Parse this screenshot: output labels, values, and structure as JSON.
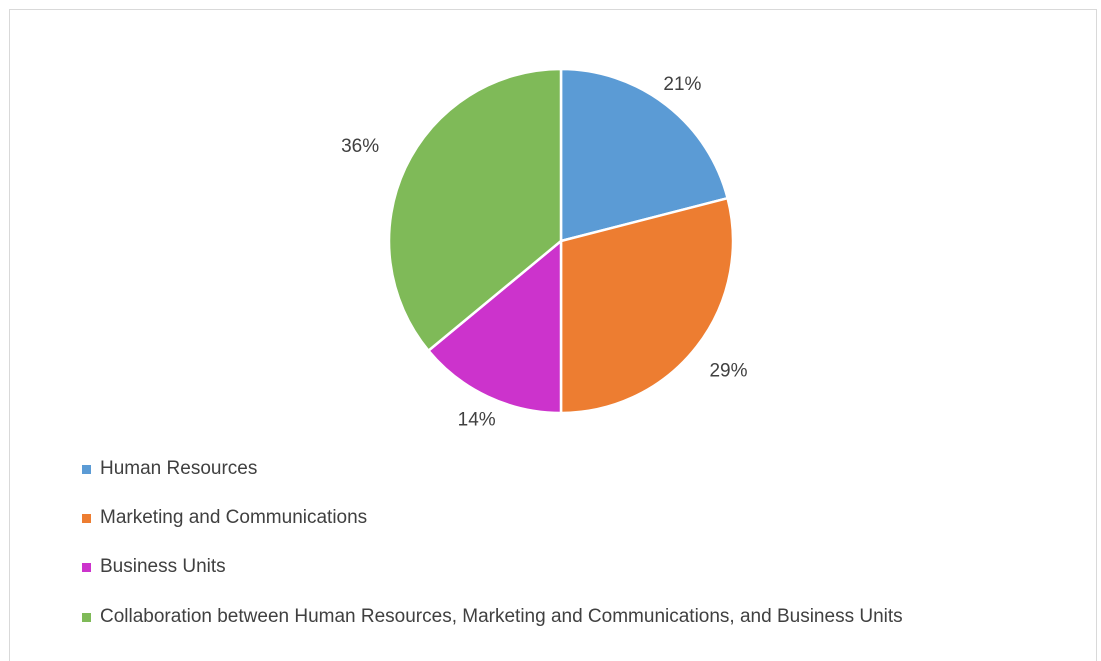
{
  "chart_data": {
    "type": "pie",
    "title": "",
    "legend_position": "bottom-left",
    "categories": [
      "Human Resources",
      "Marketing and Communications",
      "Business Units",
      "Collaboration between Human Resources, Marketing and Communications, and Business Units"
    ],
    "values": [
      21,
      29,
      14,
      36
    ],
    "labels": [
      "21%",
      "29%",
      "14%",
      "36%"
    ],
    "colors": [
      "#5b9bd5",
      "#ed7d31",
      "#cc33cc",
      "#7fba58"
    ]
  }
}
